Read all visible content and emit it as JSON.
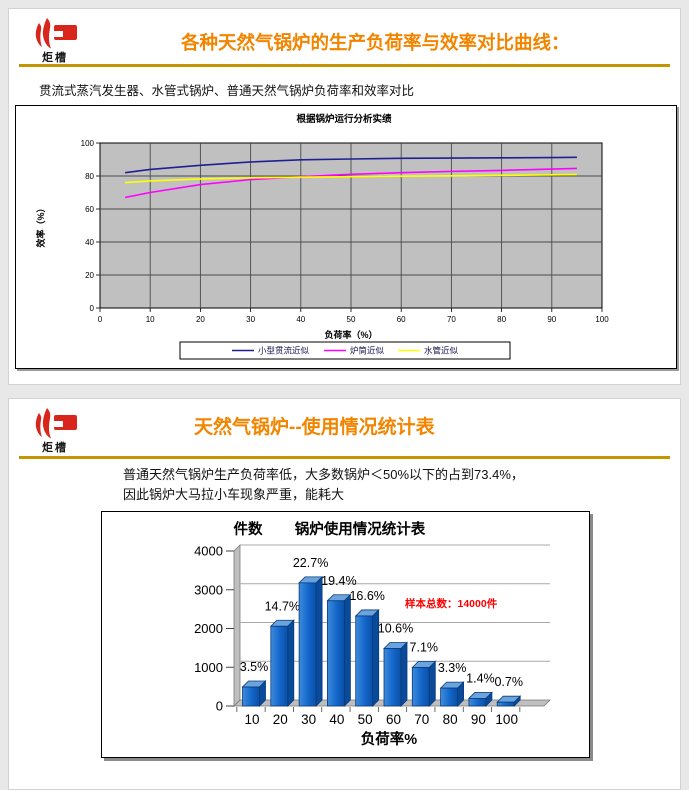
{
  "theme": {
    "page_bg": "#e8e8e8",
    "accent_orange": "#f28500",
    "rule_gold": "#c39500",
    "logo_red": "#d9261c",
    "annotation_red": "#ff0000"
  },
  "slide1": {
    "logo_text": "炬槽",
    "title": "各种天然气锅炉的生产负荷率与效率对比曲线：",
    "subtitle": "贯流式蒸汽发生器、水管式锅炉、普通天然气锅炉负荷率和效率对比"
  },
  "slide2": {
    "logo_text": "炬槽",
    "title": "天然气锅炉--使用情况统计表",
    "body": "普通天然气锅炉生产负荷率低，大多数锅炉＜50%以下的占到73.4%，因此锅炉大马拉小车现象严重，能耗大"
  },
  "chart_data": [
    {
      "type": "line",
      "title": "根据锅炉运行分析实绩",
      "xlabel": "负荷率（%）",
      "ylabel": "效率（%）",
      "xlim": [
        0,
        100
      ],
      "ylim": [
        0,
        100
      ],
      "x_ticks": [
        0,
        10,
        20,
        30,
        40,
        50,
        60,
        70,
        80,
        90,
        100
      ],
      "y_ticks": [
        0,
        20,
        40,
        60,
        80,
        100
      ],
      "plot_bg": "#c0c0c0",
      "grid": true,
      "grid_color": "#4a4a4a",
      "legend_position": "bottom",
      "x": [
        5,
        10,
        20,
        30,
        40,
        50,
        60,
        70,
        80,
        90,
        95
      ],
      "series": [
        {
          "name": "小型贯流近似",
          "color": "#1f1f93",
          "y": [
            82,
            84,
            86.5,
            88.5,
            89.8,
            90.3,
            90.7,
            90.9,
            91,
            91.2,
            91.3
          ]
        },
        {
          "name": "炉筒近似",
          "color": "#ff00ff",
          "y": [
            67,
            70,
            74.8,
            77.8,
            79.6,
            81,
            82,
            82.8,
            83.4,
            84.2,
            84.6
          ]
        },
        {
          "name": "水管近似",
          "color": "#ffff00",
          "y": [
            76,
            77,
            78.2,
            78.9,
            79.3,
            79.6,
            79.9,
            80.1,
            80.4,
            80.7,
            80.9
          ]
        }
      ]
    },
    {
      "type": "bar",
      "title": "锅炉使用情况统计表",
      "xlabel": "负荷率%",
      "ylabel": "件数",
      "ylim": [
        0,
        4000
      ],
      "y_ticks": [
        0,
        1000,
        2000,
        3000,
        4000
      ],
      "categories": [
        "10",
        "20",
        "30",
        "40",
        "50",
        "60",
        "70",
        "80",
        "90",
        "100"
      ],
      "values": [
        490,
        2058,
        3178,
        2716,
        2324,
        1484,
        994,
        462,
        196,
        98
      ],
      "labels": [
        "3.5%",
        "14.7%",
        "22.7%",
        "19.4%",
        "16.6%",
        "10.6%",
        "7.1%",
        "3.3%",
        "1.4%",
        "0.7%"
      ],
      "annotation": "样本总数：14000件",
      "annotation_color": "#ff0000",
      "bar_color": "#1266ca",
      "bar_top_color": "#6ba3dd",
      "bar_side_color": "#0a4a9a",
      "wall_color": "#bfbfbf",
      "grid": true,
      "style": "3d"
    }
  ]
}
